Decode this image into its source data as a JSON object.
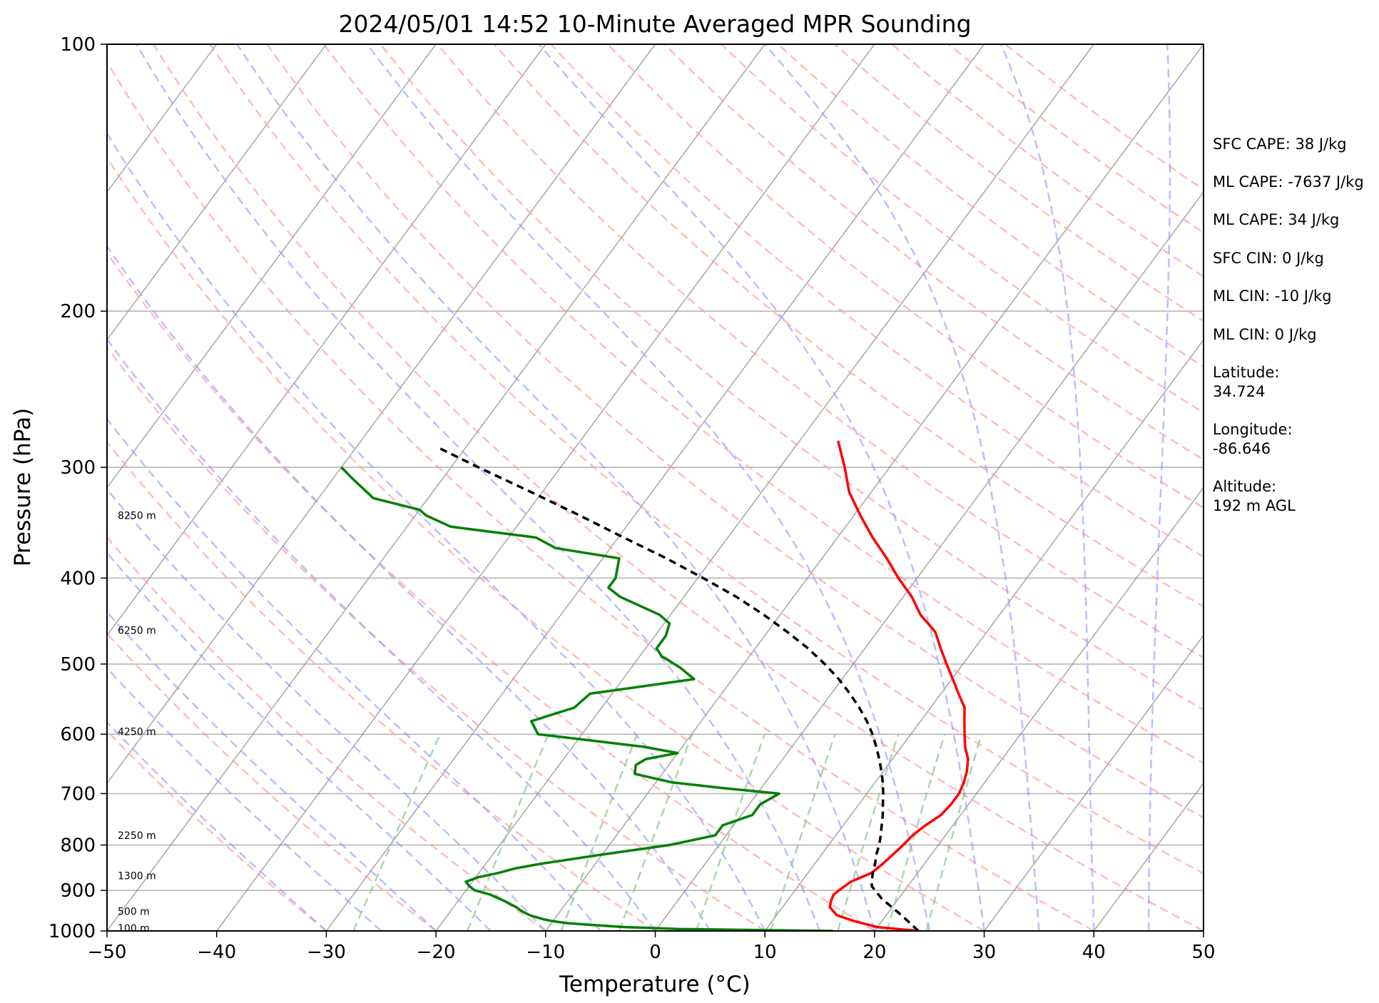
{
  "chart_data": {
    "type": "line",
    "title": "2024/05/01 14:52 10-Minute Averaged MPR Sounding",
    "xlabel": "Temperature (°C)",
    "ylabel": "Pressure (hPa)",
    "xlim": [
      -50,
      50
    ],
    "ylim": [
      1000,
      100
    ],
    "yscale": "log",
    "grid": true,
    "xticks": [
      -50,
      -40,
      -30,
      -20,
      -10,
      0,
      10,
      20,
      30,
      40,
      50
    ],
    "xtick_labels": [
      "−50",
      "−40",
      "−30",
      "−20",
      "−10",
      "0",
      "10",
      "20",
      "30",
      "40",
      "50"
    ],
    "yticks": [
      1000,
      900,
      800,
      700,
      600,
      500,
      400,
      300,
      200,
      100
    ],
    "ytick_labels": [
      "1000",
      "900",
      "800",
      "700",
      "600",
      "500",
      "400",
      "300",
      "200",
      "100"
    ],
    "colors": {
      "temperature": "#ff0000",
      "dewpoint": "#008000",
      "parcel": "#000000",
      "isotherms": "#808080",
      "dry_adiabats": "#ff9999",
      "moist_adiabats": "#9999ff",
      "mixing_ratio": "#90c890"
    },
    "series": [
      {
        "key": "temperature",
        "pressure": [
          1000,
          990,
          975,
          960,
          940,
          925,
          910,
          900,
          880,
          860,
          840,
          820,
          800,
          780,
          760,
          740,
          720,
          700,
          680,
          660,
          640,
          620,
          600,
          580,
          560,
          540,
          520,
          500,
          480,
          460,
          440,
          420,
          400,
          380,
          360,
          340,
          320,
          300,
          280
        ],
        "values": [
          24.0,
          20.0,
          17.5,
          15.5,
          14.3,
          14.0,
          13.8,
          14.0,
          14.5,
          15.8,
          16.2,
          16.5,
          16.8,
          17.0,
          17.5,
          18.2,
          18.4,
          18.4,
          18.1,
          17.6,
          16.9,
          15.8,
          14.9,
          14.0,
          13.1,
          11.6,
          10.1,
          8.5,
          6.9,
          5.3,
          2.8,
          0.8,
          -1.7,
          -4.1,
          -6.8,
          -9.4,
          -12.0,
          -14.1,
          -16.5
        ]
      },
      {
        "key": "dewpoint",
        "pressure": [
          1000,
          998,
          995,
          990,
          985,
          980,
          975,
          970,
          960,
          950,
          940,
          925,
          910,
          900,
          890,
          880,
          870,
          860,
          850,
          840,
          820,
          800,
          780,
          760,
          740,
          720,
          700,
          690,
          680,
          665,
          650,
          640,
          630,
          620,
          600,
          580,
          560,
          540,
          520,
          505,
          490,
          480,
          465,
          450,
          440,
          420,
          410,
          400,
          380,
          370,
          360,
          350,
          340,
          335,
          325,
          310,
          300
        ],
        "values": [
          16.2,
          10.0,
          2.0,
          -3.0,
          -6.0,
          -8.5,
          -10.0,
          -11.0,
          -12.5,
          -13.5,
          -14.3,
          -15.8,
          -17.5,
          -19.2,
          -20.0,
          -20.6,
          -19.8,
          -18.2,
          -17.0,
          -15.0,
          -10.0,
          -4.5,
          -1.0,
          -1.0,
          1.0,
          1.0,
          2.0,
          -3.5,
          -8.5,
          -12.5,
          -13.0,
          -12.5,
          -10.0,
          -13.5,
          -24.0,
          -25.5,
          -22.5,
          -22.0,
          -13.5,
          -15.5,
          -18.0,
          -19.0,
          -19.0,
          -19.5,
          -21.0,
          -25.8,
          -27.5,
          -27.5,
          -28.5,
          -35.0,
          -37.5,
          -46.0,
          -49.0,
          -50.0,
          -55.0,
          -58.0,
          -60.0
        ]
      },
      {
        "key": "parcel",
        "pressure": [
          1000,
          960,
          920,
          890,
          875,
          860,
          840,
          820,
          800,
          780,
          760,
          740,
          720,
          700,
          680,
          660,
          640,
          620,
          600,
          580,
          560,
          540,
          520,
          500,
          480,
          460,
          440,
          420,
          400,
          380,
          360,
          340,
          320,
          300,
          285
        ],
        "values": [
          24.0,
          21.4,
          18.5,
          16.7,
          16.3,
          15.9,
          15.5,
          15.0,
          14.6,
          14.1,
          13.5,
          12.9,
          12.2,
          11.5,
          10.7,
          9.8,
          8.8,
          7.7,
          6.5,
          5.1,
          3.5,
          1.7,
          -0.3,
          -2.6,
          -5.2,
          -8.2,
          -11.5,
          -15.2,
          -19.5,
          -24.2,
          -29.5,
          -35.0,
          -41.0,
          -47.5,
          -52.5
        ]
      }
    ],
    "height_labels": [
      {
        "label": "8250 m",
        "pressure": 340
      },
      {
        "label": "6250 m",
        "pressure": 458
      },
      {
        "label": "4250 m",
        "pressure": 596
      },
      {
        "label": "2250 m",
        "pressure": 780
      },
      {
        "label": "1300 m",
        "pressure": 866
      },
      {
        "label": "500 m",
        "pressure": 950
      },
      {
        "label": "100 m",
        "pressure": 993
      }
    ]
  },
  "info": {
    "sfc_cape": "SFC CAPE: 38 J/kg",
    "ml_cape_1": "ML CAPE: -7637 J/kg",
    "ml_cape_2": "ML CAPE: 34 J/kg",
    "sfc_cin": "SFC CIN: 0 J/kg",
    "ml_cin_1": "ML CIN: -10 J/kg",
    "ml_cin_2": "ML CIN: 0 J/kg",
    "latitude": "Latitude:\n34.724",
    "longitude": "Longitude:\n-86.646",
    "altitude": "Altitude:\n192 m AGL"
  }
}
